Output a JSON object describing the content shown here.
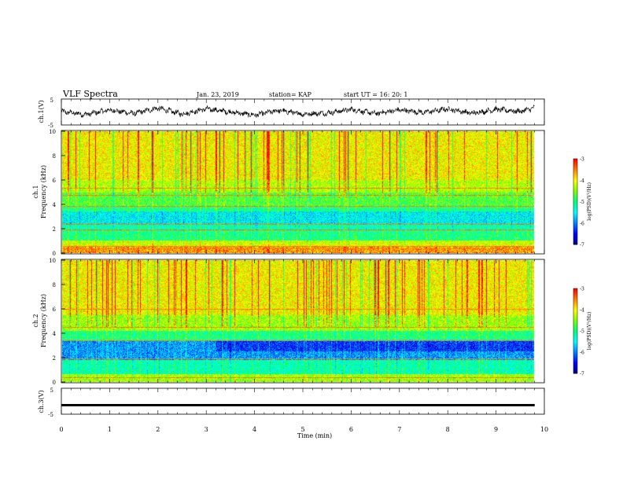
{
  "header": {
    "title": "VLF Spectra",
    "date": "Jan. 23, 2019",
    "station": "station= KAP",
    "start": "start  UT =   16: 20: 1"
  },
  "chart_data": [
    {
      "type": "line",
      "name": "channel-1-waveform",
      "ylabel": "ch.1(V)",
      "ylim": [
        -5,
        5
      ],
      "yticks": [
        "5",
        "-5"
      ],
      "xlim": [
        0,
        10
      ],
      "envelope_x": [
        0,
        0.5,
        1,
        1.5,
        2,
        2.5,
        3,
        3.5,
        4,
        4.5,
        5,
        5.5,
        6,
        6.5,
        7,
        7.5,
        8,
        8.5,
        9,
        9.5,
        9.8
      ],
      "envelope_y": [
        0.2,
        -1.0,
        0.8,
        -0.6,
        1.5,
        -0.8,
        1.2,
        0.0,
        -1.2,
        0.6,
        -0.8,
        -0.4,
        1.0,
        -0.6,
        0.8,
        -0.2,
        1.2,
        -0.5,
        1.0,
        0.2,
        1.6
      ]
    },
    {
      "type": "heatmap",
      "name": "channel-1-spectrogram",
      "ylabel": "ch.1\nFrequency (kHz)",
      "ylim": [
        0,
        10
      ],
      "yticks": [
        "0",
        "2",
        "4",
        "6",
        "8",
        "10"
      ],
      "xlim": [
        0,
        10
      ],
      "x_end": 9.8,
      "colorbar": {
        "label": "log(PSD)(V²/Hz)",
        "range": [
          -7,
          -3
        ],
        "ticks": [
          "-3",
          "-4",
          "-5",
          "-6",
          "-7"
        ]
      },
      "bands": [
        {
          "f": [
            0.0,
            0.5
          ],
          "level": -3.6
        },
        {
          "f": [
            0.5,
            1.0
          ],
          "level": -4.2
        },
        {
          "f": [
            1.0,
            1.8
          ],
          "level": -5.0
        },
        {
          "f": [
            1.8,
            2.4
          ],
          "level": -5.2
        },
        {
          "f": [
            2.4,
            3.4
          ],
          "level": -5.5
        },
        {
          "f": [
            3.4,
            3.8
          ],
          "level": -5.0
        },
        {
          "f": [
            3.8,
            5.0
          ],
          "level": -4.7
        },
        {
          "f": [
            5.0,
            6.0
          ],
          "level": -4.3
        },
        {
          "f": [
            6.0,
            10.0
          ],
          "level": -4.0
        }
      ],
      "lines_khz": [
        0.3,
        0.55,
        1.9,
        2.35,
        3.8,
        4.75,
        5.3
      ]
    },
    {
      "type": "heatmap",
      "name": "channel-2-spectrogram",
      "ylabel": "ch.2\nFrequency (kHz)",
      "ylim": [
        0,
        10
      ],
      "yticks": [
        "0",
        "2",
        "4",
        "6",
        "8",
        "10"
      ],
      "xlim": [
        0,
        10
      ],
      "x_end": 9.8,
      "colorbar": {
        "label": "log(PSD)(V²/Hz)",
        "range": [
          -7,
          -3
        ],
        "ticks": [
          "-3",
          "-4",
          "-5",
          "-6",
          "-7"
        ]
      },
      "bands": [
        {
          "f": [
            0.0,
            0.6
          ],
          "level": -4.4
        },
        {
          "f": [
            0.6,
            1.8
          ],
          "level": -5.2
        },
        {
          "f": [
            1.8,
            3.4
          ],
          "level": -5.9
        },
        {
          "f": [
            3.4,
            4.2
          ],
          "level": -5.0
        },
        {
          "f": [
            4.2,
            5.5
          ],
          "level": -4.4
        },
        {
          "f": [
            5.5,
            10.0
          ],
          "level": -4.0
        }
      ],
      "lines_khz": [
        0.35,
        1.9,
        3.4,
        4.5,
        6.0
      ]
    },
    {
      "type": "line",
      "name": "channel-3-waveform",
      "ylabel": "ch.3(V)",
      "ylim": [
        -5,
        5
      ],
      "yticks": [
        "5",
        "-5"
      ],
      "xlim": [
        0,
        10
      ],
      "x": [
        0,
        9.8
      ],
      "y": [
        -1.5,
        -1.5
      ]
    }
  ],
  "xaxis": {
    "label": "Time  (min)",
    "ticks": [
      "0",
      "1",
      "2",
      "3",
      "4",
      "5",
      "6",
      "7",
      "8",
      "9",
      "10"
    ]
  },
  "colors": {
    "colormap": [
      "#00007f",
      "#0000ff",
      "#0080ff",
      "#00ffff",
      "#00ff80",
      "#80ff00",
      "#ffff00",
      "#ff8000",
      "#ff0000",
      "#ffffff"
    ]
  }
}
